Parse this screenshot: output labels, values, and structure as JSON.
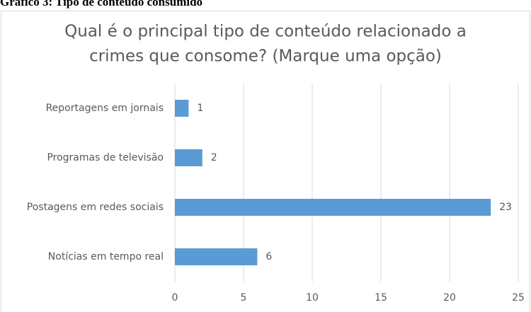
{
  "caption": "Gráfico 3: Tipo de conteúdo consumido",
  "chart_data": {
    "type": "hbar",
    "title": [
      "Qual é o principal tipo de conteúdo relacionado a",
      "crimes que consome? (Marque uma opção)"
    ],
    "categories": [
      "Reportagens em jornais",
      "Programas de televisão",
      "Postagens em redes sociais",
      "Notícias em tempo real"
    ],
    "values": [
      1,
      2,
      23,
      6
    ],
    "color": "#5b9bd5",
    "xlim": [
      0,
      25
    ],
    "xticks": [
      0,
      5,
      10,
      15,
      20,
      25
    ],
    "grid": true
  }
}
